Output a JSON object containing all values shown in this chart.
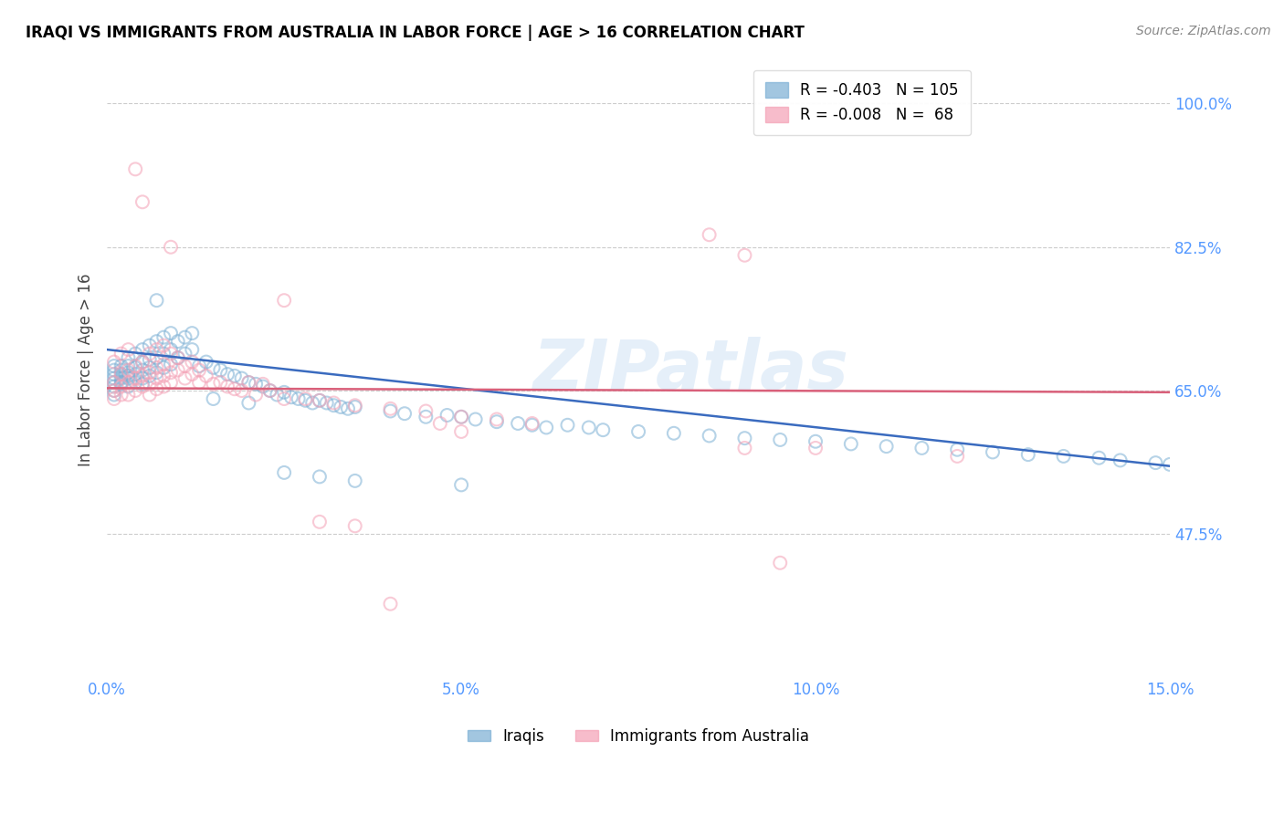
{
  "title": "IRAQI VS IMMIGRANTS FROM AUSTRALIA IN LABOR FORCE | AGE > 16 CORRELATION CHART",
  "source": "Source: ZipAtlas.com",
  "ylabel": "In Labor Force | Age > 16",
  "xlim": [
    0.0,
    0.15
  ],
  "ylim": [
    0.3,
    1.05
  ],
  "xticks": [
    0.0,
    0.05,
    0.1,
    0.15
  ],
  "xticklabels": [
    "0.0%",
    "5.0%",
    "10.0%",
    "15.0%"
  ],
  "yticks": [
    0.475,
    0.65,
    0.825,
    1.0
  ],
  "yticklabels": [
    "47.5%",
    "65.0%",
    "82.5%",
    "100.0%"
  ],
  "watermark": "ZIPatlas",
  "iraqis_color": "#7bafd4",
  "australia_color": "#f4a0b5",
  "iraqis_scatter": [
    [
      0.001,
      0.675
    ],
    [
      0.001,
      0.665
    ],
    [
      0.001,
      0.655
    ],
    [
      0.001,
      0.68
    ],
    [
      0.001,
      0.66
    ],
    [
      0.001,
      0.67
    ],
    [
      0.001,
      0.65
    ],
    [
      0.001,
      0.645
    ],
    [
      0.002,
      0.68
    ],
    [
      0.002,
      0.665
    ],
    [
      0.002,
      0.675
    ],
    [
      0.002,
      0.658
    ],
    [
      0.002,
      0.67
    ],
    [
      0.002,
      0.66
    ],
    [
      0.003,
      0.69
    ],
    [
      0.003,
      0.672
    ],
    [
      0.003,
      0.665
    ],
    [
      0.003,
      0.655
    ],
    [
      0.003,
      0.68
    ],
    [
      0.003,
      0.668
    ],
    [
      0.004,
      0.695
    ],
    [
      0.004,
      0.678
    ],
    [
      0.004,
      0.67
    ],
    [
      0.004,
      0.66
    ],
    [
      0.005,
      0.7
    ],
    [
      0.005,
      0.685
    ],
    [
      0.005,
      0.675
    ],
    [
      0.005,
      0.665
    ],
    [
      0.005,
      0.658
    ],
    [
      0.006,
      0.705
    ],
    [
      0.006,
      0.688
    ],
    [
      0.006,
      0.678
    ],
    [
      0.006,
      0.668
    ],
    [
      0.007,
      0.76
    ],
    [
      0.007,
      0.71
    ],
    [
      0.007,
      0.69
    ],
    [
      0.007,
      0.672
    ],
    [
      0.008,
      0.715
    ],
    [
      0.008,
      0.695
    ],
    [
      0.008,
      0.678
    ],
    [
      0.009,
      0.72
    ],
    [
      0.009,
      0.7
    ],
    [
      0.009,
      0.682
    ],
    [
      0.01,
      0.71
    ],
    [
      0.01,
      0.69
    ],
    [
      0.011,
      0.715
    ],
    [
      0.011,
      0.695
    ],
    [
      0.012,
      0.72
    ],
    [
      0.012,
      0.7
    ],
    [
      0.013,
      0.68
    ],
    [
      0.014,
      0.685
    ],
    [
      0.015,
      0.678
    ],
    [
      0.016,
      0.675
    ],
    [
      0.017,
      0.67
    ],
    [
      0.018,
      0.668
    ],
    [
      0.019,
      0.665
    ],
    [
      0.02,
      0.66
    ],
    [
      0.021,
      0.658
    ],
    [
      0.022,
      0.655
    ],
    [
      0.023,
      0.65
    ],
    [
      0.024,
      0.645
    ],
    [
      0.025,
      0.648
    ],
    [
      0.026,
      0.642
    ],
    [
      0.027,
      0.64
    ],
    [
      0.028,
      0.638
    ],
    [
      0.029,
      0.635
    ],
    [
      0.03,
      0.638
    ],
    [
      0.031,
      0.635
    ],
    [
      0.032,
      0.632
    ],
    [
      0.033,
      0.63
    ],
    [
      0.034,
      0.628
    ],
    [
      0.035,
      0.63
    ],
    [
      0.04,
      0.625
    ],
    [
      0.042,
      0.622
    ],
    [
      0.045,
      0.618
    ],
    [
      0.048,
      0.62
    ],
    [
      0.05,
      0.618
    ],
    [
      0.052,
      0.615
    ],
    [
      0.055,
      0.612
    ],
    [
      0.058,
      0.61
    ],
    [
      0.06,
      0.608
    ],
    [
      0.062,
      0.605
    ],
    [
      0.065,
      0.608
    ],
    [
      0.068,
      0.605
    ],
    [
      0.07,
      0.602
    ],
    [
      0.075,
      0.6
    ],
    [
      0.08,
      0.598
    ],
    [
      0.085,
      0.595
    ],
    [
      0.09,
      0.592
    ],
    [
      0.095,
      0.59
    ],
    [
      0.1,
      0.588
    ],
    [
      0.105,
      0.585
    ],
    [
      0.11,
      0.582
    ],
    [
      0.115,
      0.58
    ],
    [
      0.12,
      0.578
    ],
    [
      0.125,
      0.575
    ],
    [
      0.13,
      0.572
    ],
    [
      0.135,
      0.57
    ],
    [
      0.14,
      0.568
    ],
    [
      0.143,
      0.565
    ],
    [
      0.148,
      0.562
    ],
    [
      0.15,
      0.56
    ],
    [
      0.015,
      0.64
    ],
    [
      0.02,
      0.635
    ],
    [
      0.025,
      0.55
    ],
    [
      0.03,
      0.545
    ],
    [
      0.035,
      0.54
    ],
    [
      0.05,
      0.535
    ]
  ],
  "australia_scatter": [
    [
      0.001,
      0.685
    ],
    [
      0.001,
      0.66
    ],
    [
      0.001,
      0.65
    ],
    [
      0.001,
      0.64
    ],
    [
      0.002,
      0.695
    ],
    [
      0.002,
      0.67
    ],
    [
      0.002,
      0.655
    ],
    [
      0.002,
      0.645
    ],
    [
      0.003,
      0.7
    ],
    [
      0.003,
      0.675
    ],
    [
      0.003,
      0.66
    ],
    [
      0.003,
      0.645
    ],
    [
      0.004,
      0.92
    ],
    [
      0.004,
      0.68
    ],
    [
      0.004,
      0.665
    ],
    [
      0.004,
      0.65
    ],
    [
      0.005,
      0.88
    ],
    [
      0.005,
      0.685
    ],
    [
      0.005,
      0.668
    ],
    [
      0.005,
      0.655
    ],
    [
      0.006,
      0.695
    ],
    [
      0.006,
      0.672
    ],
    [
      0.006,
      0.658
    ],
    [
      0.006,
      0.645
    ],
    [
      0.007,
      0.7
    ],
    [
      0.007,
      0.678
    ],
    [
      0.007,
      0.665
    ],
    [
      0.007,
      0.652
    ],
    [
      0.008,
      0.705
    ],
    [
      0.008,
      0.682
    ],
    [
      0.008,
      0.668
    ],
    [
      0.008,
      0.655
    ],
    [
      0.009,
      0.825
    ],
    [
      0.009,
      0.695
    ],
    [
      0.009,
      0.672
    ],
    [
      0.009,
      0.66
    ],
    [
      0.01,
      0.69
    ],
    [
      0.01,
      0.675
    ],
    [
      0.011,
      0.68
    ],
    [
      0.011,
      0.665
    ],
    [
      0.012,
      0.685
    ],
    [
      0.012,
      0.67
    ],
    [
      0.013,
      0.675
    ],
    [
      0.013,
      0.66
    ],
    [
      0.014,
      0.668
    ],
    [
      0.015,
      0.658
    ],
    [
      0.016,
      0.66
    ],
    [
      0.017,
      0.655
    ],
    [
      0.018,
      0.652
    ],
    [
      0.019,
      0.65
    ],
    [
      0.02,
      0.66
    ],
    [
      0.021,
      0.645
    ],
    [
      0.022,
      0.658
    ],
    [
      0.023,
      0.65
    ],
    [
      0.025,
      0.76
    ],
    [
      0.025,
      0.64
    ],
    [
      0.028,
      0.64
    ],
    [
      0.03,
      0.638
    ],
    [
      0.03,
      0.49
    ],
    [
      0.032,
      0.635
    ],
    [
      0.035,
      0.632
    ],
    [
      0.035,
      0.485
    ],
    [
      0.04,
      0.628
    ],
    [
      0.04,
      0.39
    ],
    [
      0.045,
      0.625
    ],
    [
      0.047,
      0.61
    ],
    [
      0.05,
      0.618
    ],
    [
      0.05,
      0.6
    ],
    [
      0.055,
      0.615
    ],
    [
      0.06,
      0.61
    ],
    [
      0.085,
      0.84
    ],
    [
      0.09,
      0.815
    ],
    [
      0.09,
      0.58
    ],
    [
      0.095,
      0.44
    ],
    [
      0.1,
      0.58
    ],
    [
      0.12,
      0.57
    ]
  ],
  "blue_line_x": [
    0.0,
    0.15
  ],
  "blue_line_y": [
    0.7,
    0.558
  ],
  "pink_line_x": [
    0.0,
    0.15
  ],
  "pink_line_y": [
    0.653,
    0.648
  ],
  "background_color": "#ffffff",
  "grid_color": "#cccccc",
  "axis_color": "#5599ff",
  "title_color": "#000000",
  "scatter_size": 100,
  "scatter_alpha": 0.55,
  "scatter_linewidth": 1.5
}
